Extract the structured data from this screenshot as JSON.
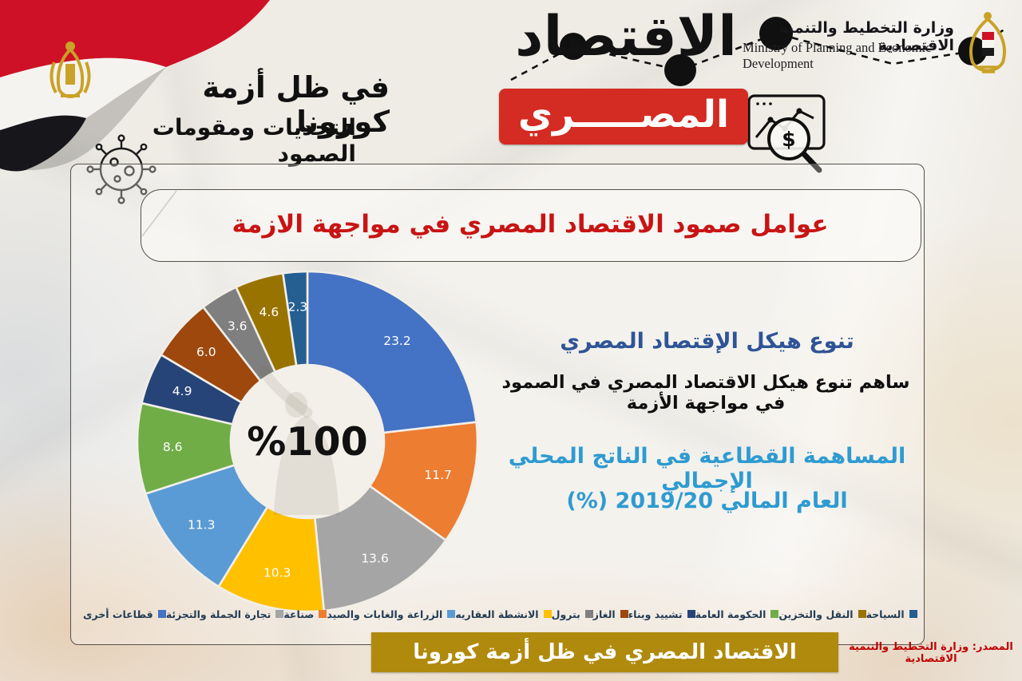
{
  "header": {
    "ministry_ar": "وزارة التخطيط والتنمية الاقتصادية",
    "ministry_en_line1": "Ministry of Planning and Economic",
    "ministry_en_line2": "Development",
    "title_black": "الاقتصاد",
    "title_red": "المصـــــري",
    "subtitle_line1": "في ظل أزمة كورونا",
    "subtitle_line2": "التحديات ومقومات الصمود"
  },
  "card": {
    "title": "عوامل صمود الاقتصاد المصري في مواجهة الازمة"
  },
  "right_panel": {
    "heading": "تنوع هيكل الإقتصاد المصري",
    "body": "ساهم تنوع هيكل الاقتصاد المصري في الصمود في مواجهة الأزمة",
    "contribution_line1": "المساهمة القطاعية في الناتج المحلي الإجمالي",
    "contribution_line2": "العام المالي 2019/20 (%)"
  },
  "chart_data": {
    "type": "pie",
    "subtype": "donut",
    "title": "المساهمة القطاعية في الناتج المحلي الإجمالي - العام المالي 2019/20 (%)",
    "center_label": "%100",
    "start_angle_deg": 0,
    "direction": "clockwise",
    "legend_position": "bottom",
    "segments": [
      {
        "label": "قطاعات أخرى",
        "value": 23.2,
        "display": "23.2",
        "color": "#4472C4"
      },
      {
        "label": "صناعة",
        "value": 11.7,
        "display": "11.7",
        "color": "#ED7D31"
      },
      {
        "label": "تجارة الجملة والتجزئة",
        "value": 13.6,
        "display": "13.6",
        "color": "#A5A5A5"
      },
      {
        "label": "الانشطة العقاريه",
        "value": 10.3,
        "display": "10.3",
        "color": "#FFC000"
      },
      {
        "label": "الزراعة والغابات والصيد",
        "value": 11.3,
        "display": "11.3",
        "color": "#5B9BD5"
      },
      {
        "label": "الحكومة العامة",
        "value": 8.6,
        "display": "8.6",
        "color": "#70AD47"
      },
      {
        "label": "تشييد وبناء",
        "value": 4.9,
        "display": "4.9",
        "color": "#264478"
      },
      {
        "label": "الغاز",
        "value": 6.0,
        "display": "6.0",
        "color": "#9E480E"
      },
      {
        "label": "بترول",
        "value": 3.6,
        "display": "3.6",
        "color": "#7F7F7F"
      },
      {
        "label": "النقل والتخزين",
        "value": 4.6,
        "display": "4.6",
        "color": "#997300"
      },
      {
        "label": "السياحة",
        "value": 2.3,
        "display": "2.3",
        "color": "#255E91"
      }
    ],
    "legend_display_order": [
      "قطاعات أخرى",
      "تجارة الجملة والتجزئة",
      "صناعة",
      "الزراعة والغابات والصيد",
      "الانشطة العقاريه",
      "بترول",
      "الغاز",
      "تشييد وبناء",
      "الحكومة العامة",
      "النقل والتخزين",
      "السياحة"
    ],
    "legend_trailing_swatch_color": "#538135"
  },
  "footer": {
    "banner": "الاقتصاد المصري في ظل أزمة كورونا",
    "source": "المصدر: وزارة التخطيط والتنمية الاقتصادية"
  },
  "colors": {
    "accent_red": "#D42B22",
    "title_red": "#C81414",
    "banner_gold": "#B08A0D",
    "heading_blue": "#2F5496",
    "light_blue": "#2E9BD1",
    "source_red": "#C00000",
    "paper": "#EFECE6"
  }
}
